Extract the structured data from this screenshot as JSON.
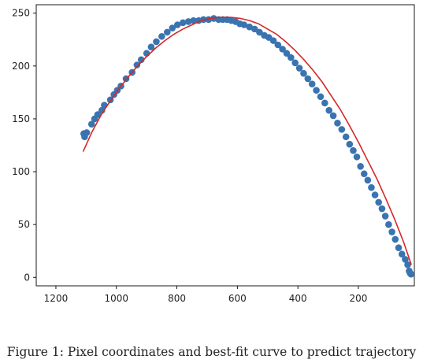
{
  "caption": "Figure 1: Pixel coordinates and best-fit curve to predict trajectory",
  "colors": {
    "points": "#3a74b0",
    "fit": "#d62728",
    "axes": "#000000",
    "text": "#222222"
  },
  "chart_data": {
    "type": "scatter",
    "title": "",
    "xlabel": "",
    "ylabel": "",
    "x_inverted": true,
    "xlim": [
      1265,
      15
    ],
    "ylim": [
      -8,
      258
    ],
    "xticks": [
      1200,
      1000,
      800,
      600,
      400,
      200
    ],
    "yticks": [
      0,
      50,
      100,
      150,
      200,
      250
    ],
    "grid": false,
    "legend": "none",
    "series": [
      {
        "type": "scatter",
        "x": [
          1108,
          1105,
          1098,
          1082,
          1072,
          1062,
          1048,
          1040,
          1020,
          1008,
          997,
          985,
          968,
          948,
          932,
          918,
          900,
          885,
          868,
          850,
          832,
          815,
          798,
          780,
          762,
          745,
          728,
          712,
          695,
          678,
          662,
          648,
          634,
          620,
          606,
          592,
          578,
          560,
          543,
          527,
          511,
          496,
          481,
          466,
          451,
          437,
          423,
          409,
          395,
          381,
          367,
          353,
          339,
          325,
          311,
          297,
          283,
          269,
          255,
          241,
          229,
          217,
          205,
          193,
          181,
          169,
          157,
          145,
          133,
          122,
          111,
          100,
          89,
          78,
          67,
          56,
          45,
          37,
          32,
          29,
          26
        ],
        "y": [
          136,
          133,
          137,
          145,
          150,
          154,
          158,
          163,
          168,
          173,
          177,
          181,
          188,
          194,
          201,
          206,
          212,
          218,
          223,
          228,
          232,
          236,
          239,
          241,
          242,
          243,
          243,
          244,
          244,
          245,
          244,
          244,
          244,
          243,
          242,
          240,
          239,
          237,
          235,
          232,
          229,
          227,
          224,
          220,
          216,
          212,
          208,
          203,
          198,
          193,
          188,
          183,
          177,
          171,
          165,
          158,
          153,
          146,
          140,
          133,
          126,
          120,
          114,
          105,
          98,
          92,
          85,
          78,
          71,
          65,
          58,
          50,
          43,
          36,
          28,
          22,
          17,
          12,
          6,
          4,
          3
        ]
      },
      {
        "type": "line",
        "x": [
          1110,
          1080,
          1050,
          1020,
          990,
          960,
          930,
          900,
          870,
          840,
          810,
          780,
          750,
          720,
          690,
          660,
          640,
          620,
          590,
          560,
          530,
          500,
          470,
          440,
          410,
          380,
          350,
          320,
          290,
          260,
          230,
          200,
          170,
          140,
          110,
          80,
          50,
          25
        ],
        "y": [
          119,
          138,
          154,
          167,
          179,
          190,
          200,
          209,
          217,
          224,
          230,
          235,
          239,
          243,
          245,
          246,
          246,
          246,
          245,
          243,
          240,
          235,
          230,
          223,
          215,
          206,
          196,
          185,
          172,
          159,
          144,
          128,
          111,
          94,
          75,
          55,
          33,
          12
        ]
      }
    ]
  }
}
